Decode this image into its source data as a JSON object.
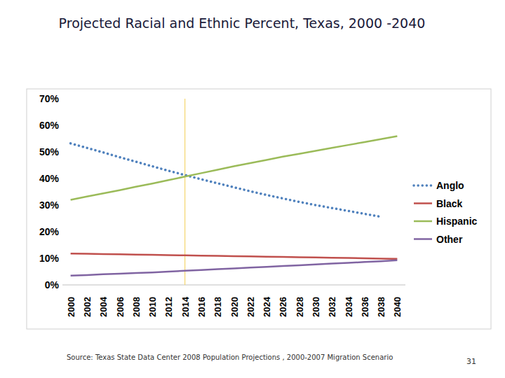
{
  "chart_data": {
    "type": "line",
    "title": "Projected Racial and Ethnic Percent, Texas, 2000 -2040",
    "source": "Source: Texas State Data Center 2008 Population Projections , 2000-2007 Migration Scenario",
    "page_number": "31",
    "categories": [
      "2000",
      "2002",
      "2004",
      "2006",
      "2008",
      "2010",
      "2012",
      "2014",
      "2016",
      "2018",
      "2020",
      "2022",
      "2024",
      "2026",
      "2028",
      "2030",
      "2032",
      "2034",
      "2036",
      "2038",
      "2040"
    ],
    "series": [
      {
        "name": "Anglo",
        "color": "#4f81bd",
        "line_style": "dotted",
        "values": [
          53.2,
          51.5,
          49.8,
          48.0,
          46.3,
          44.6,
          42.9,
          41.3,
          39.7,
          38.2,
          36.7,
          35.2,
          33.8,
          32.5,
          31.2,
          30.0,
          28.9,
          27.8,
          26.7,
          25.6,
          null
        ]
      },
      {
        "name": "Black",
        "color": "#c0504d",
        "line_style": "solid",
        "values": [
          11.8,
          11.7,
          11.6,
          11.5,
          11.4,
          11.3,
          11.2,
          11.1,
          11.0,
          10.9,
          10.8,
          10.7,
          10.6,
          10.5,
          10.4,
          10.3,
          10.2,
          10.1,
          10.0,
          9.9,
          9.8
        ]
      },
      {
        "name": "Hispanic",
        "color": "#9bbb59",
        "line_style": "solid",
        "values": [
          32.0,
          33.2,
          34.4,
          35.6,
          36.9,
          38.1,
          39.4,
          40.7,
          42.0,
          43.3,
          44.6,
          45.8,
          47.0,
          48.2,
          49.3,
          50.4,
          51.5,
          52.6,
          53.7,
          54.8,
          55.9
        ]
      },
      {
        "name": "Other",
        "color": "#8064a2",
        "line_style": "solid",
        "values": [
          3.5,
          3.7,
          4.0,
          4.2,
          4.5,
          4.7,
          5.0,
          5.3,
          5.6,
          5.9,
          6.2,
          6.5,
          6.8,
          7.1,
          7.4,
          7.7,
          8.0,
          8.3,
          8.6,
          8.9,
          9.3
        ]
      }
    ],
    "ylim": [
      0,
      70
    ],
    "yticks": [
      {
        "value": 0,
        "label": "0%"
      },
      {
        "value": 10,
        "label": "10%"
      },
      {
        "value": 20,
        "label": "20%"
      },
      {
        "value": 30,
        "label": "30%"
      },
      {
        "value": 40,
        "label": "40%"
      },
      {
        "value": 50,
        "label": "50%"
      },
      {
        "value": 60,
        "label": "60%"
      },
      {
        "value": 70,
        "label": "70%"
      }
    ],
    "grid": false,
    "legend": "right",
    "reference_line": {
      "category": "2014",
      "color": "#f5d76e"
    }
  }
}
